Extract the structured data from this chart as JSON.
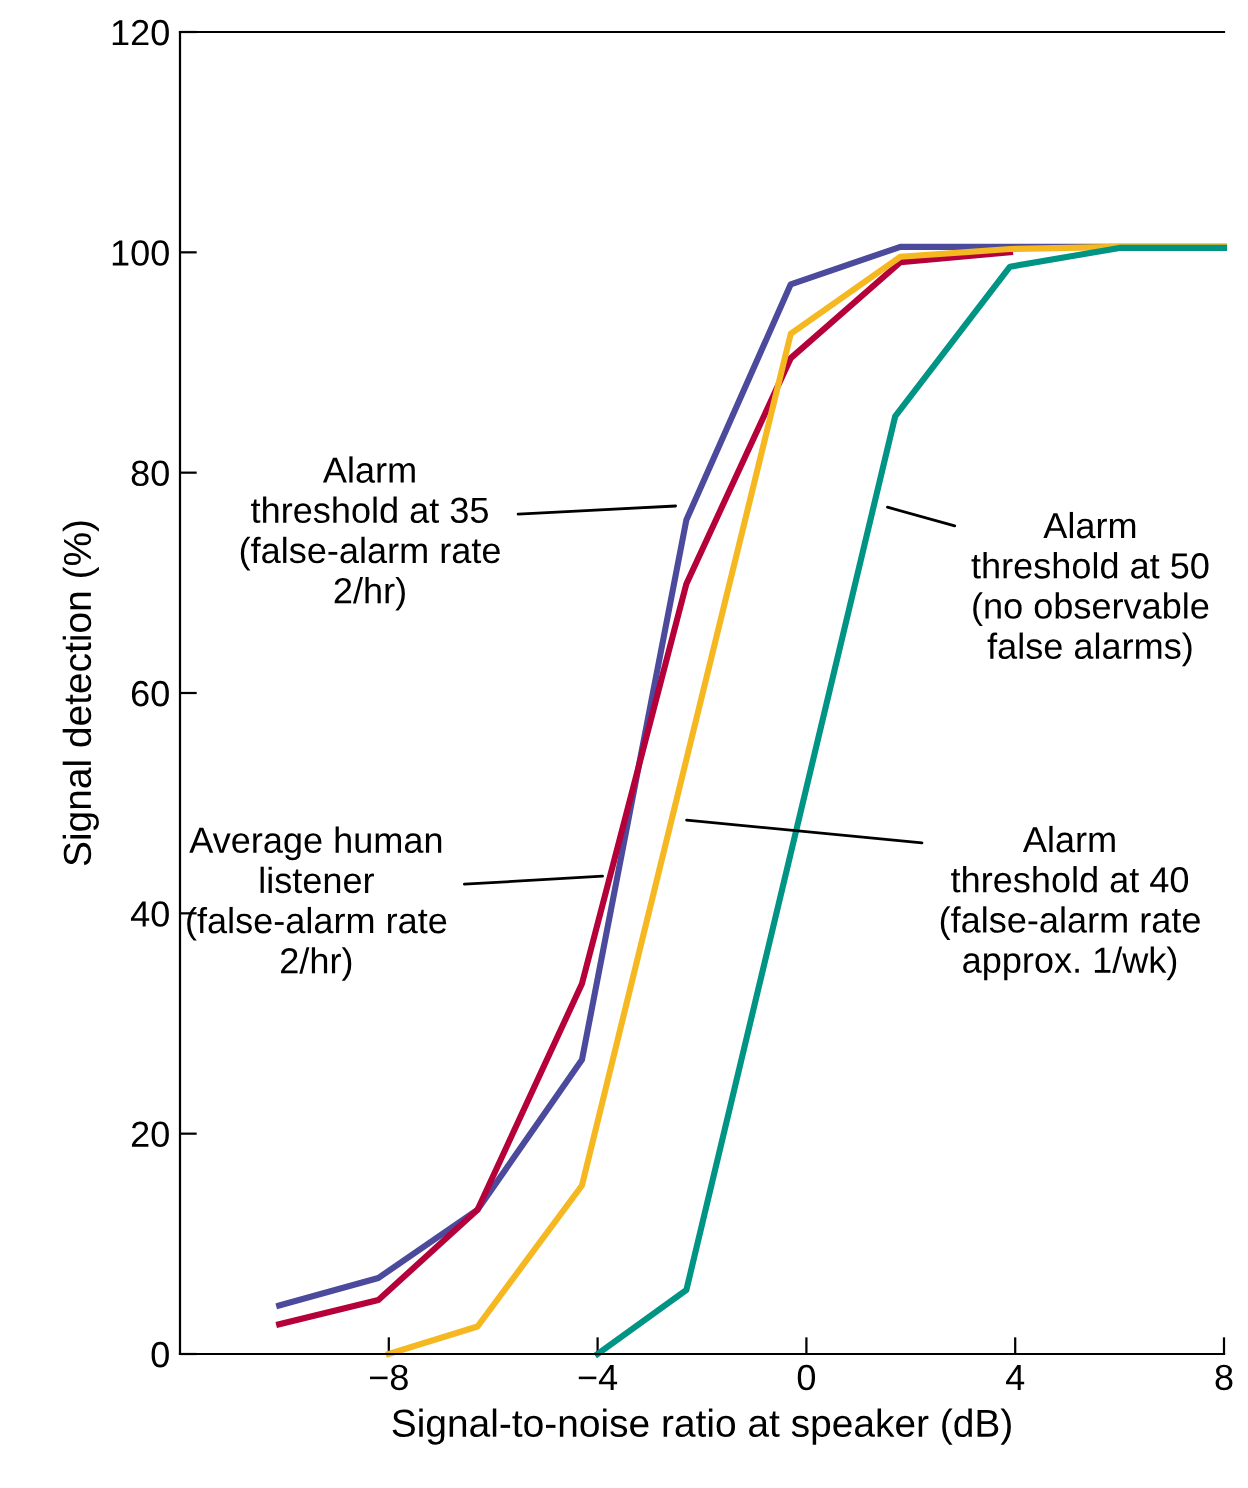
{
  "chart_data": {
    "type": "line",
    "xlabel": "Signal-to-noise ratio at speaker (dB)",
    "ylabel": "Signal detection (%)",
    "xlim": [
      -12,
      8
    ],
    "xticks": [
      {
        "value": -8,
        "label": "−8"
      },
      {
        "value": -4,
        "label": "−4"
      },
      0,
      4,
      8
    ],
    "ylim": [
      0,
      120
    ],
    "yticks": [
      0,
      20,
      40,
      60,
      80,
      100,
      120
    ],
    "grid": false,
    "legend": false,
    "marker": "none",
    "line_style": "solid",
    "series": [
      {
        "color": "#4b4a9c",
        "x": [
          -10.1,
          -8.2,
          -6.3,
          -4.3,
          -2.3,
          -0.3,
          1.8,
          3.9,
          6.0,
          8.0
        ],
        "values": [
          4.4,
          6.9,
          13.1,
          26.7,
          75.7,
          97.1,
          100.5,
          100.5,
          100.5,
          100.5
        ]
      },
      {
        "color": "#b5003a",
        "x": [
          -10.1,
          -8.2,
          -6.3,
          -4.3,
          -2.3,
          -0.3,
          1.8,
          3.9
        ],
        "values": [
          2.7,
          4.9,
          13.1,
          33.6,
          69.9,
          90.4,
          99.1,
          100
        ]
      },
      {
        "color": "#f5b820",
        "x": [
          -8.0,
          -6.3,
          -4.3,
          -0.3,
          1.8,
          3.9,
          6.0,
          8.0
        ],
        "values": [
          0,
          2.5,
          15.3,
          92.6,
          99.6,
          100.3,
          100.5,
          100.5
        ]
      },
      {
        "color": "#009485",
        "x": [
          -4.0,
          -2.3,
          1.7,
          3.9,
          6.0,
          8.0
        ],
        "values": [
          0,
          5.8,
          85.1,
          98.7,
          100.4,
          100.4
        ]
      }
    ],
    "annotations": [
      {
        "text": "Alarm\nthreshold at 35\n(false-alarm rate\n2/hr)",
        "x": -2.4,
        "y": 77
      },
      {
        "text": "Average human\nlistener\n(false-alarm rate\n2/hr)",
        "x": -3.8,
        "y": 43.4
      },
      {
        "text": "Alarm\nthreshold at 50\n(no observable\nfalse alarms)",
        "x": 1.45,
        "y": 77
      },
      {
        "text": "Alarm\nthreshold at 40\n(false-alarm rate\napprox. 1/wk)",
        "x": -2.4,
        "y": 48.5
      }
    ]
  }
}
